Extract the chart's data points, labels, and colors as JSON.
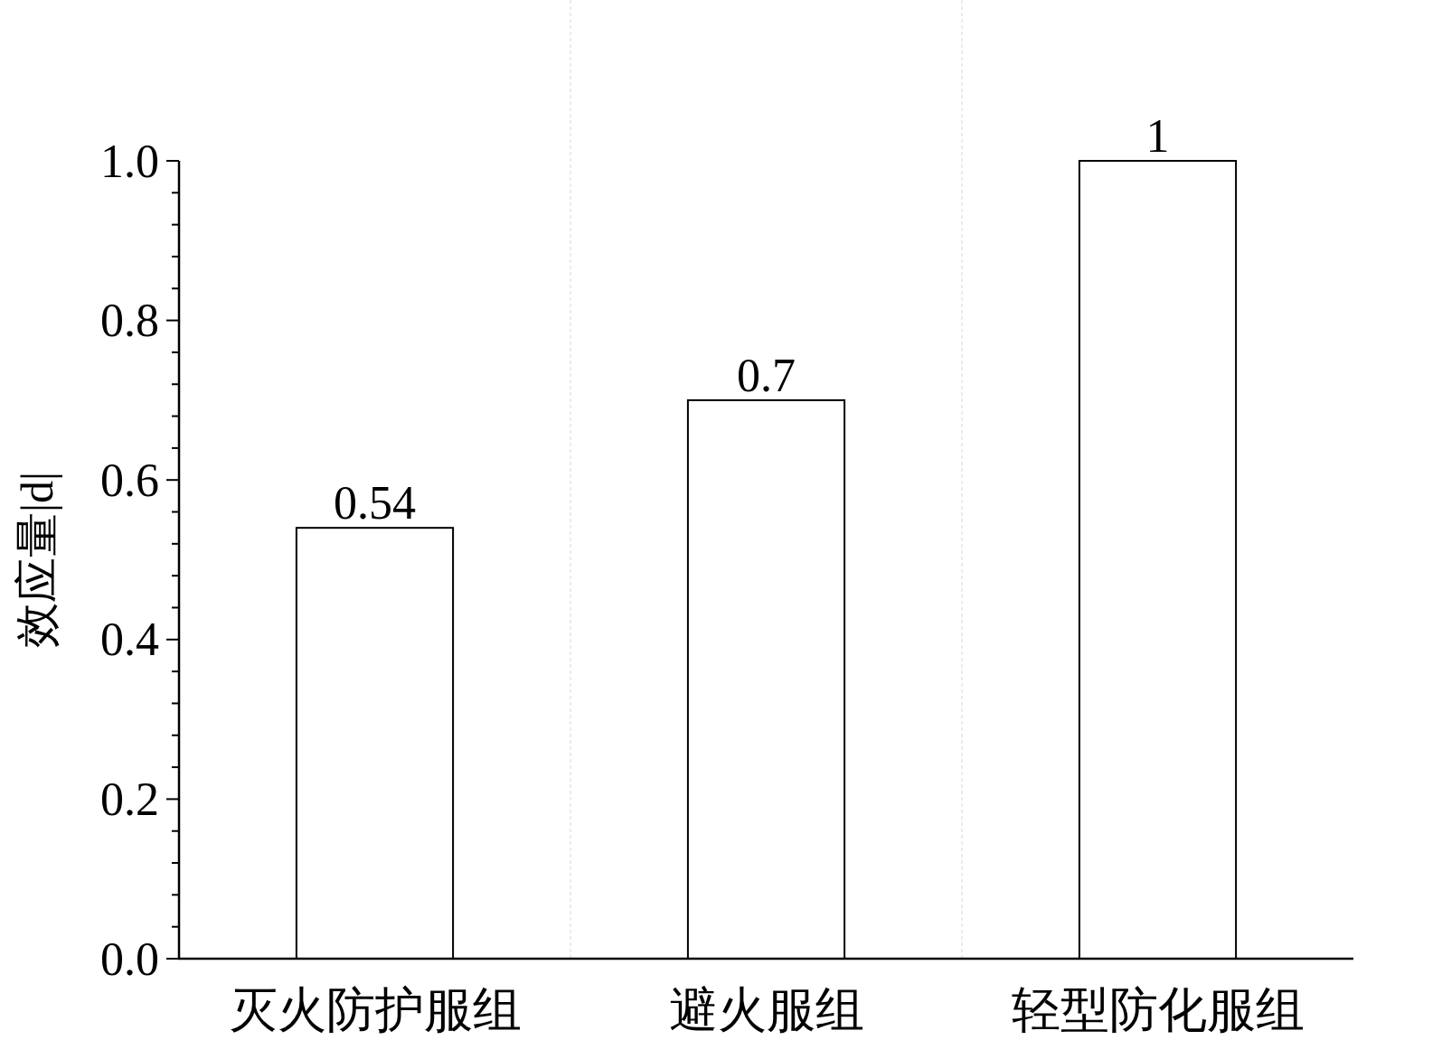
{
  "chart_data": {
    "type": "bar",
    "ylabel": "效应量|d|",
    "categories": [
      "灭火防护服组",
      "避火服组",
      "轻型防化服组"
    ],
    "values": [
      0.54,
      0.7,
      1
    ],
    "color": "#ffffff",
    "data_labels": true,
    "grid": "x",
    "ylim": [
      0,
      1
    ],
    "yticks": [
      {
        "value": 0,
        "label": "0.0"
      },
      {
        "value": 0.04,
        "label": null
      },
      {
        "value": 0.08,
        "label": null
      },
      {
        "value": 0.12,
        "label": null
      },
      {
        "value": 0.16,
        "label": null
      },
      {
        "value": 0.2,
        "label": "0.2"
      },
      {
        "value": 0.24,
        "label": null
      },
      {
        "value": 0.28,
        "label": null
      },
      {
        "value": 0.32,
        "label": null
      },
      {
        "value": 0.36,
        "label": null
      },
      {
        "value": 0.4,
        "label": "0.4"
      },
      {
        "value": 0.44,
        "label": null
      },
      {
        "value": 0.48,
        "label": null
      },
      {
        "value": 0.52,
        "label": null
      },
      {
        "value": 0.56,
        "label": null
      },
      {
        "value": 0.6,
        "label": "0.6"
      },
      {
        "value": 0.64,
        "label": null
      },
      {
        "value": 0.68,
        "label": null
      },
      {
        "value": 0.72,
        "label": null
      },
      {
        "value": 0.76,
        "label": null
      },
      {
        "value": 0.8,
        "label": "0.8"
      },
      {
        "value": 0.84,
        "label": null
      },
      {
        "value": 0.88,
        "label": null
      },
      {
        "value": 0.92,
        "label": null
      },
      {
        "value": 0.96,
        "label": null
      },
      {
        "value": 1,
        "label": "1.0"
      }
    ]
  }
}
